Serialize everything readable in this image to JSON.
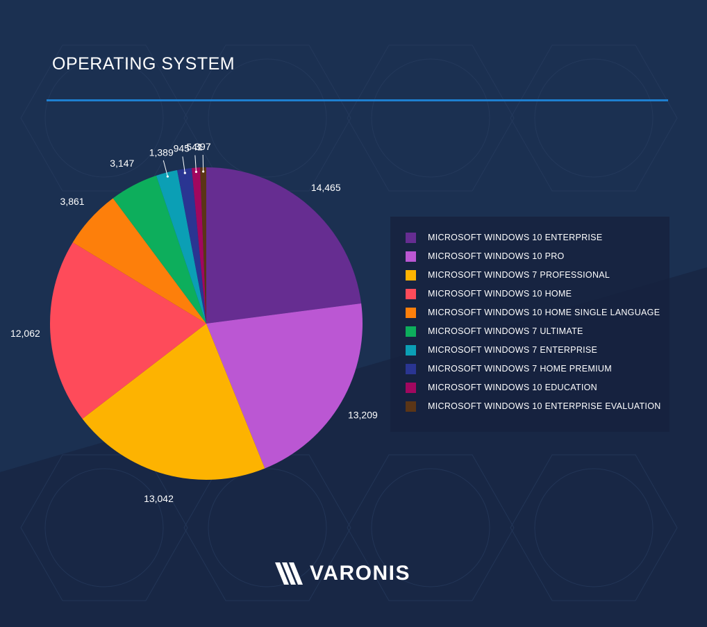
{
  "title": "OPERATING SYSTEM",
  "brand": "VARONIS",
  "colors": {
    "background": "#1b2c4d",
    "accent_rule": "#1e7fd0"
  },
  "chart_data": {
    "type": "pie",
    "title": "OPERATING SYSTEM",
    "legend_position": "right",
    "slices": [
      {
        "label": "MICROSOFT WINDOWS 10 ENTERPRISE",
        "value": 14465,
        "display": "14,465",
        "color": "#662d91"
      },
      {
        "label": "MICROSOFT WINDOWS 10 PRO",
        "value": 13209,
        "display": "13,209",
        "color": "#bb57d3"
      },
      {
        "label": "MICROSOFT WINDOWS 7 PROFESSIONAL",
        "value": 13042,
        "display": "13,042",
        "color": "#fdb301"
      },
      {
        "label": "MICROSOFT WINDOWS 10 HOME",
        "value": 12062,
        "display": "12,062",
        "color": "#fe4b5a"
      },
      {
        "label": "MICROSOFT WINDOWS 10 HOME SINGLE LANGUAGE",
        "value": 3861,
        "display": "3,861",
        "color": "#fd7f0b"
      },
      {
        "label": "MICROSOFT WINDOWS 7 ULTIMATE",
        "value": 3147,
        "display": "3,147",
        "color": "#0dae5c"
      },
      {
        "label": "MICROSOFT WINDOWS 7 ENTERPRISE",
        "value": 1389,
        "display": "1,389",
        "color": "#0b9fb5"
      },
      {
        "label": "MICROSOFT WINDOWS 7 HOME PREMIUM",
        "value": 945,
        "display": "945",
        "color": "#2a3592"
      },
      {
        "label": "MICROSOFT WINDOWS 10 EDUCATION",
        "value": 541,
        "display": "541",
        "color": "#a1075f"
      },
      {
        "label": "MICROSOFT WINDOWS 10 ENTERPRISE EVALUATION",
        "value": 397,
        "display": "397",
        "color": "#5b3516"
      }
    ]
  }
}
